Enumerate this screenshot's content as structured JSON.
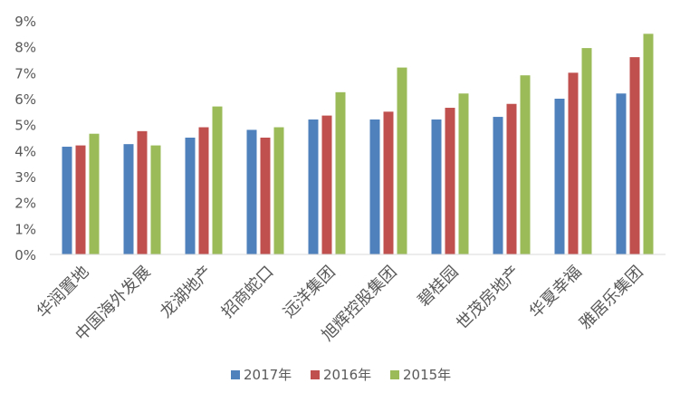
{
  "chart_data": {
    "type": "bar",
    "categories": [
      "华润置地",
      "中国海外发展",
      "龙湖地产",
      "招商蛇口",
      "远洋集团",
      "旭辉控股集团",
      "碧桂园",
      "世茂房地产",
      "华夏幸福",
      "雅居乐集团"
    ],
    "series": [
      {
        "name": "2017年",
        "color": "#4f81bd",
        "values": [
          4.15,
          4.25,
          4.5,
          4.8,
          5.2,
          5.2,
          5.2,
          5.3,
          6.0,
          6.2
        ]
      },
      {
        "name": "2016年",
        "color": "#c0504d",
        "values": [
          4.2,
          4.75,
          4.9,
          4.5,
          5.35,
          5.5,
          5.65,
          5.8,
          7.0,
          7.6
        ]
      },
      {
        "name": "2015年",
        "color": "#9bbb59",
        "values": [
          4.65,
          4.2,
          5.7,
          4.9,
          6.25,
          7.2,
          6.2,
          6.9,
          7.95,
          8.5
        ]
      }
    ],
    "y_ticks": [
      "0%",
      "1%",
      "2%",
      "3%",
      "4%",
      "5%",
      "6%",
      "7%",
      "8%",
      "9%"
    ],
    "ylim": [
      0,
      9
    ],
    "grid": false,
    "legend_position": "bottom"
  }
}
